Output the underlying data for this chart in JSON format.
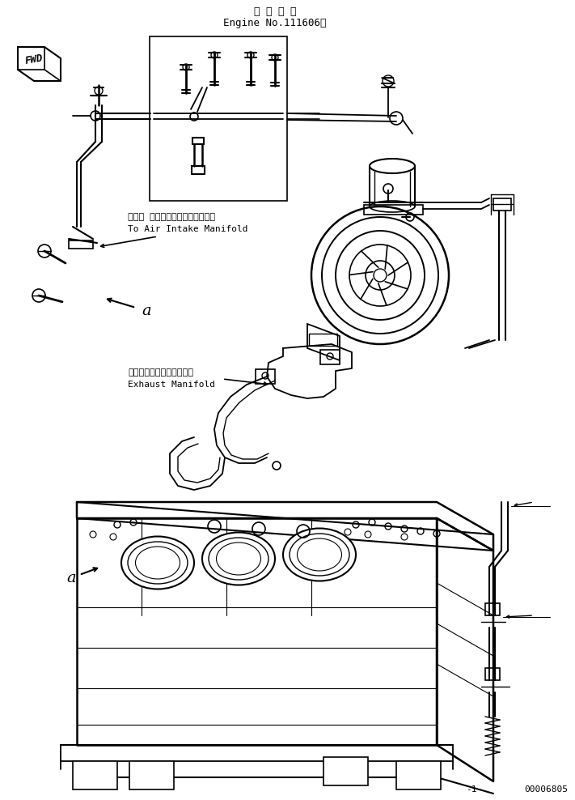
{
  "title_jp": "適 用 号 機",
  "title_en": "Engine No.111606～",
  "label1_jp": "エアー インテークマニホールドへ",
  "label1_en": "To Air Intake Manifold",
  "label2_jp": "エキゾーストマニホールド",
  "label2_en": "Exhaust Manifold",
  "label_a": "a",
  "label_fwd": "FWD",
  "part_number": "00006805",
  "fig_number": "-1",
  "bg_color": "#ffffff",
  "line_color": "#000000",
  "text_color": "#000000",
  "figsize": [
    7.11,
    9.88
  ],
  "dpi": 100
}
